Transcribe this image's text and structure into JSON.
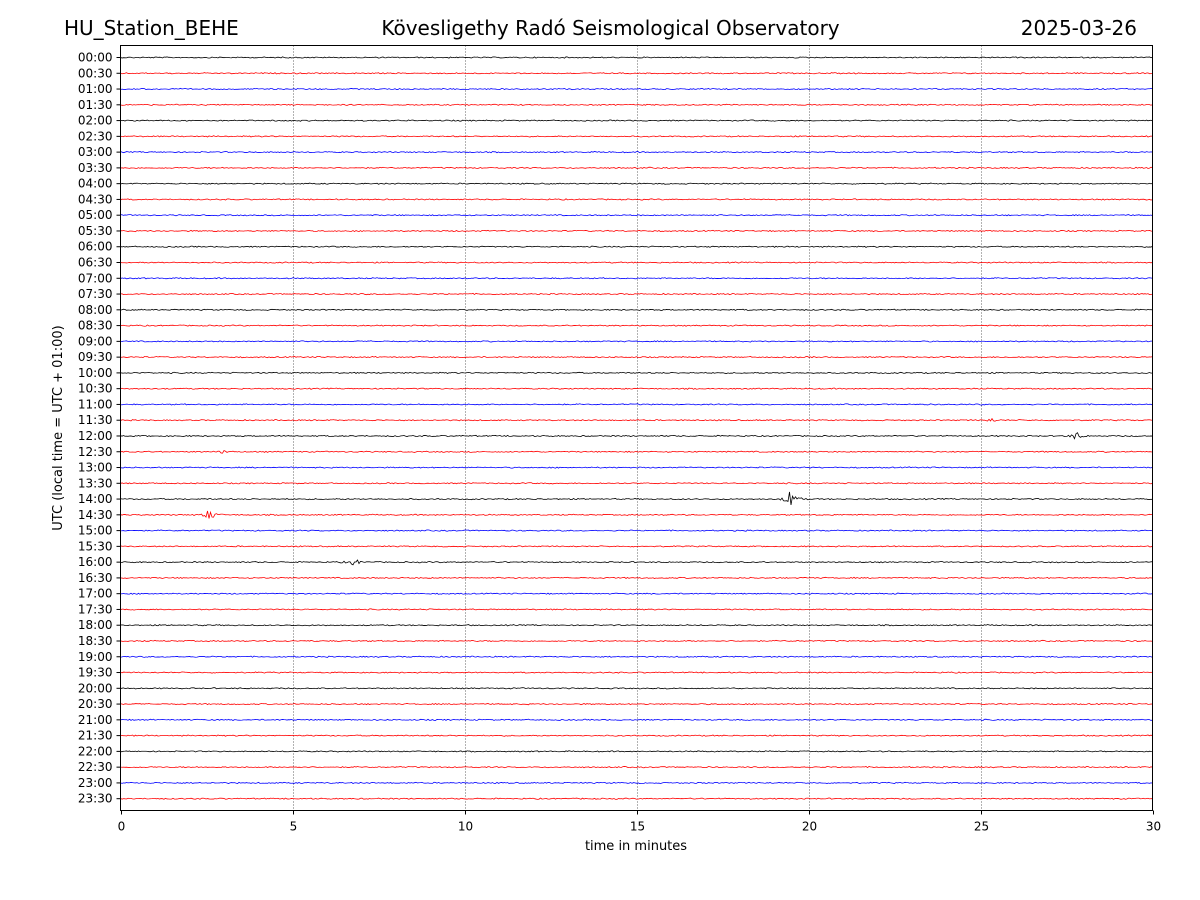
{
  "header": {
    "station": "HU_Station_BEHE",
    "title": "Kövesligethy Radó Seismological Observatory",
    "date": "2025-03-26"
  },
  "chart_data": {
    "type": "line",
    "xlabel": "time in minutes",
    "ylabel": "UTC (local time = UTC + 01:00)",
    "xlim": [
      0,
      30
    ],
    "xticks": [
      "0",
      "5",
      "10",
      "15",
      "20",
      "25",
      "30"
    ],
    "vertical_grid": true,
    "rows": [
      "00:00",
      "00:30",
      "01:00",
      "01:30",
      "02:00",
      "02:30",
      "03:00",
      "03:30",
      "04:00",
      "04:30",
      "05:00",
      "05:30",
      "06:00",
      "06:30",
      "07:00",
      "07:30",
      "08:00",
      "08:30",
      "09:00",
      "09:30",
      "10:00",
      "10:30",
      "11:00",
      "11:30",
      "12:00",
      "12:30",
      "13:00",
      "13:30",
      "14:00",
      "14:30",
      "15:00",
      "15:30",
      "16:00",
      "16:30",
      "17:00",
      "17:30",
      "18:00",
      "18:30",
      "19:00",
      "19:30",
      "20:00",
      "20:30",
      "21:00",
      "21:30",
      "22:00",
      "22:30",
      "23:00",
      "23:30"
    ],
    "trace_colors": [
      "#000000",
      "#ff0000",
      "#0000ff",
      "#ff0000"
    ],
    "events": [
      {
        "row": "11:30",
        "minute": 25.3,
        "amplitude": 0.2
      },
      {
        "row": "12:00",
        "minute": 27.8,
        "amplitude": 0.4
      },
      {
        "row": "12:30",
        "minute": 3.0,
        "amplitude": 0.15
      },
      {
        "row": "14:00",
        "minute": 19.5,
        "amplitude": 1.0
      },
      {
        "row": "14:30",
        "minute": 2.6,
        "amplitude": 0.6
      },
      {
        "row": "16:00",
        "minute": 6.8,
        "amplitude": 0.35
      }
    ]
  }
}
